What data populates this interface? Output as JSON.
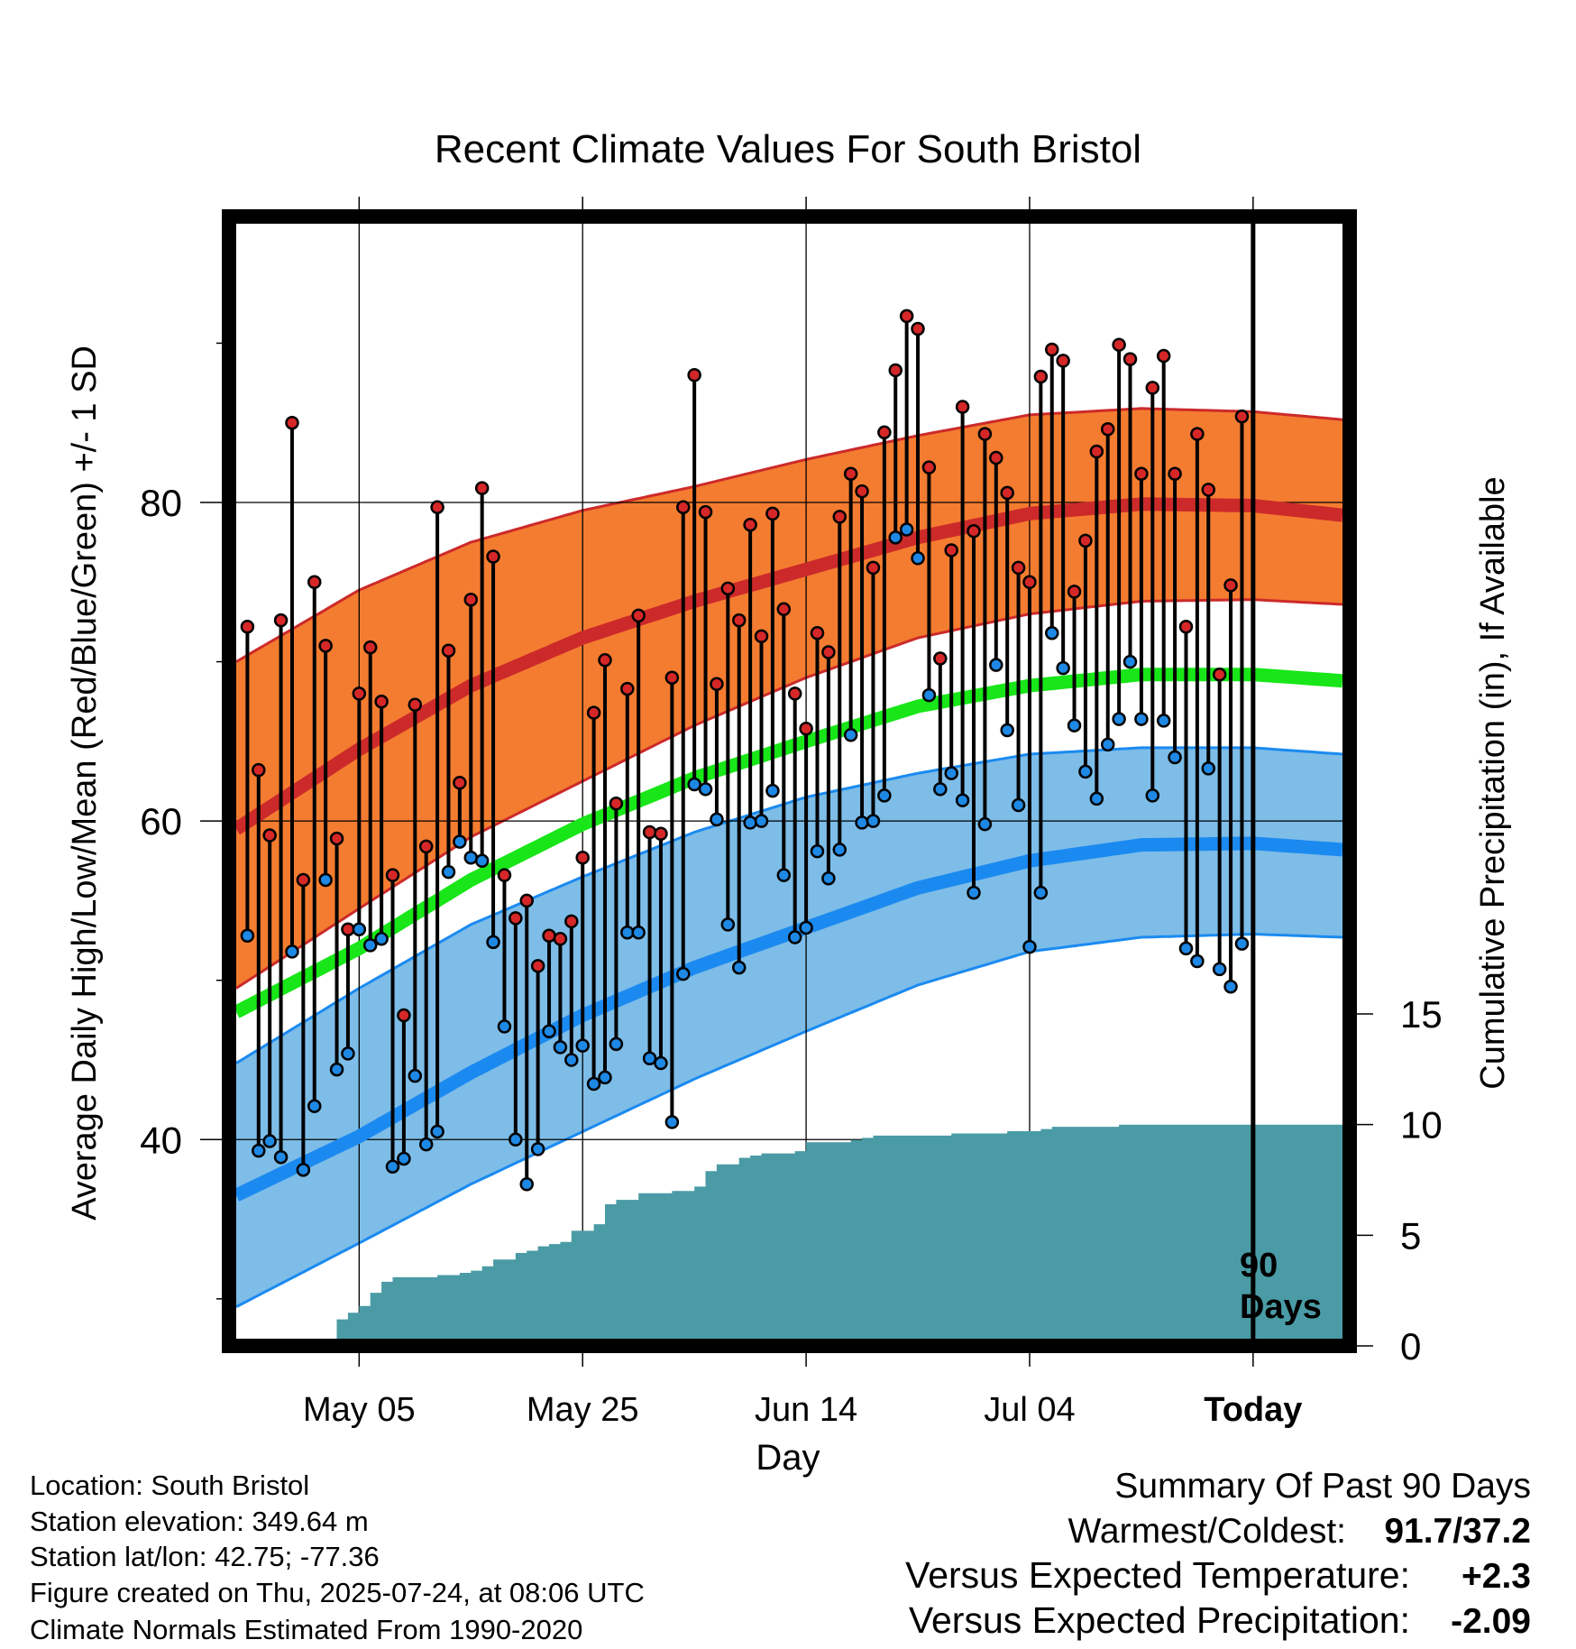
{
  "chart_data": {
    "type": "line",
    "title": "Recent Climate Values For South Bristol",
    "xlabel": "Day",
    "ylabel": "Average Daily High/Low/Mean (Red/Blue/Green) +/- 1 SD",
    "y2label": "Cumulative Precipitation (in), If Available",
    "x_tick_labels": [
      "May 05",
      "May 25",
      "Jun 14",
      "Jul 04",
      "Today"
    ],
    "x_tick_days": [
      10,
      30,
      50,
      70,
      90
    ],
    "xlim": [
      -1,
      98
    ],
    "ylim": [
      27.5,
      97.5
    ],
    "y_ticks": [
      40,
      60,
      80
    ],
    "y2lim": [
      0,
      50
    ],
    "y2_ticks": [
      0,
      5,
      10,
      15
    ],
    "today_day": 90,
    "today_label_line1": "90",
    "today_label_line2": "Days",
    "grid": true,
    "normals": {
      "day_keys": [
        -1,
        10,
        20,
        30,
        40,
        50,
        60,
        70,
        80,
        90,
        98
      ],
      "high_mean": [
        59.5,
        64.5,
        68.5,
        71.5,
        73.8,
        75.8,
        77.8,
        79.3,
        79.9,
        79.8,
        79.2
      ],
      "high_plus_sd": [
        70.0,
        74.5,
        77.5,
        79.5,
        81.0,
        82.7,
        84.2,
        85.5,
        85.9,
        85.7,
        85.2
      ],
      "high_minus_sd": [
        49.5,
        54.5,
        59.0,
        62.5,
        66.0,
        69.0,
        71.5,
        73.0,
        73.8,
        73.9,
        73.6
      ],
      "mean": [
        48.0,
        52.0,
        56.3,
        59.8,
        62.7,
        65.0,
        67.2,
        68.5,
        69.2,
        69.2,
        68.8
      ],
      "low_mean": [
        36.5,
        40.2,
        44.2,
        47.8,
        50.8,
        53.3,
        55.8,
        57.5,
        58.5,
        58.6,
        58.2
      ],
      "low_plus_sd": [
        44.8,
        49.5,
        53.5,
        56.5,
        59.3,
        61.5,
        63.0,
        64.2,
        64.6,
        64.6,
        64.2
      ],
      "low_minus_sd": [
        29.5,
        33.5,
        37.2,
        40.5,
        43.8,
        46.8,
        49.7,
        51.8,
        52.7,
        52.9,
        52.7
      ]
    },
    "series": [
      {
        "name": "Red",
        "color": "#d62728",
        "values": [
          72.2,
          63.2,
          59.1,
          72.6,
          85.0,
          56.3,
          75.0,
          71.0,
          58.9,
          53.2,
          68.0,
          70.9,
          67.5,
          56.6,
          47.8,
          67.3,
          58.4,
          79.7,
          70.7,
          62.4,
          73.9,
          80.9,
          76.6,
          56.6,
          53.9,
          55.0,
          50.9,
          52.8,
          52.6,
          53.7,
          57.7,
          66.8,
          70.1,
          61.1,
          68.3,
          72.9,
          59.3,
          59.2,
          69.0,
          79.7,
          88.0,
          79.4,
          68.6,
          74.6,
          72.6,
          78.6,
          71.6,
          79.3,
          73.3,
          68.0,
          65.8,
          71.8,
          70.6,
          79.1,
          81.8,
          80.7,
          75.9,
          84.4,
          88.3,
          91.7,
          90.9,
          82.2,
          70.2,
          77.0,
          86.0,
          78.2,
          84.3,
          82.8,
          80.6,
          75.9,
          75.0,
          87.9,
          89.6,
          88.9,
          74.4,
          77.6,
          83.2,
          84.6,
          89.9,
          89.0,
          81.8,
          87.2,
          89.2,
          81.8,
          72.2,
          84.3,
          80.8,
          69.2,
          74.8,
          85.4
        ]
      },
      {
        "name": "Blue",
        "color": "#1e88e5",
        "values": [
          52.8,
          39.3,
          39.9,
          38.9,
          51.8,
          38.1,
          42.1,
          56.3,
          44.4,
          45.4,
          53.2,
          52.2,
          52.6,
          38.3,
          38.8,
          44.0,
          39.7,
          40.5,
          56.8,
          58.7,
          57.7,
          57.5,
          52.4,
          47.1,
          40.0,
          37.2,
          39.4,
          46.8,
          45.8,
          45.0,
          45.9,
          43.5,
          43.9,
          46.0,
          53.0,
          53.0,
          45.1,
          44.8,
          41.1,
          50.4,
          62.3,
          62.0,
          60.1,
          53.5,
          50.8,
          59.9,
          60.0,
          61.9,
          56.6,
          52.7,
          53.3,
          58.1,
          56.4,
          58.2,
          65.4,
          59.9,
          60.0,
          61.6,
          77.8,
          78.3,
          76.5,
          67.9,
          62.0,
          63.0,
          61.3,
          55.5,
          59.8,
          69.8,
          65.7,
          61.0,
          52.1,
          55.5,
          71.8,
          69.6,
          66.0,
          63.1,
          61.4,
          64.8,
          66.4,
          70.0,
          66.4,
          61.6,
          66.3,
          64.0,
          52.0,
          51.2,
          63.3,
          50.7,
          49.6,
          52.3
        ]
      },
      {
        "name": "Cumulative Precipitation",
        "color": "#4a9ba5",
        "values": [
          0.0,
          0.0,
          0.0,
          0.0,
          0.0,
          0.1,
          0.1,
          0.2,
          1.2,
          1.5,
          1.8,
          2.4,
          2.9,
          3.1,
          3.1,
          3.1,
          3.1,
          3.2,
          3.2,
          3.3,
          3.4,
          3.6,
          3.9,
          3.9,
          4.2,
          4.3,
          4.5,
          4.6,
          4.7,
          5.2,
          5.2,
          5.5,
          6.4,
          6.6,
          6.6,
          6.9,
          6.9,
          6.9,
          7.0,
          7.0,
          7.2,
          7.9,
          8.2,
          8.2,
          8.5,
          8.6,
          8.7,
          8.7,
          8.7,
          8.8,
          9.2,
          9.2,
          9.2,
          9.2,
          9.3,
          9.4,
          9.5,
          9.5,
          9.5,
          9.5,
          9.5,
          9.5,
          9.5,
          9.6,
          9.6,
          9.6,
          9.6,
          9.6,
          9.7,
          9.7,
          9.7,
          9.8,
          9.9,
          9.9,
          9.9,
          9.9,
          9.9,
          9.9,
          10.0,
          10.0,
          10.0,
          10.0,
          10.0,
          10.0,
          10.0,
          10.0,
          10.0,
          10.0,
          10.0,
          10.0,
          10.0,
          10.0,
          10.0,
          10.0,
          10.0,
          10.0,
          10.0,
          10.0,
          10.0,
          10.0
        ]
      }
    ],
    "colors": {
      "high_band": "#f47c30",
      "high_line": "#cc2a2a",
      "mean_line": "#18e618",
      "low_band": "#7dbde8",
      "low_line": "#1b8af0",
      "high_dot": "#d62728",
      "low_dot": "#1e88e5",
      "precip": "#4a9ba5"
    }
  },
  "footer": {
    "location": "Location: South Bristol",
    "elevation": "Station elevation: 349.64 m",
    "latlon": "Station lat/lon: 42.75; -77.36",
    "created": "Figure created on Thu, 2025-07-24, at 08:06 UTC",
    "normals": "Climate Normals Estimated From 1990-2020"
  },
  "summary": {
    "title": "Summary Of Past 90 Days",
    "warmest_label": "Warmest/Coldest:",
    "warmest_value": "91.7/37.2",
    "temp_label": "Versus Expected Temperature:",
    "temp_value": "+2.3",
    "temp_color": "#d62728",
    "precip_label": "Versus Expected Precipitation:",
    "precip_value": "-2.09",
    "precip_color": "#a0522d"
  }
}
